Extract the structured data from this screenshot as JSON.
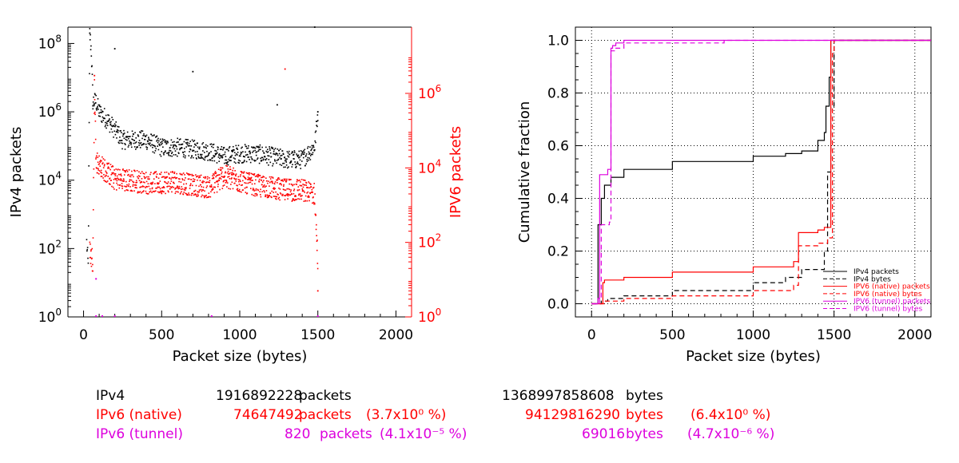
{
  "colors": {
    "ipv4": "#000000",
    "ipv6_native": "#ff0000",
    "ipv6_tunnel": "#dd00dd",
    "grid": "#000000"
  },
  "chart_data": [
    {
      "type": "scatter",
      "xlabel": "Packet size (bytes)",
      "ylabel_left": "IPv4 packets",
      "ylabel_right": "IPV6 packets",
      "xlim": [
        -100,
        2100
      ],
      "ylim_left": [
        1,
        300000000
      ],
      "ylim_right": [
        1,
        60000000
      ],
      "yscale": "log",
      "grid": false,
      "x_ticks": [
        "0",
        "500",
        "1000",
        "1500",
        "2000"
      ],
      "y_ticks_left": [
        {
          "base": "10",
          "exp": "0"
        },
        {
          "base": "10",
          "exp": "2"
        },
        {
          "base": "10",
          "exp": "4"
        },
        {
          "base": "10",
          "exp": "6"
        },
        {
          "base": "10",
          "exp": "8"
        }
      ],
      "y_ticks_right": [
        {
          "base": "10",
          "exp": "0"
        },
        {
          "base": "10",
          "exp": "2"
        },
        {
          "base": "10",
          "exp": "4"
        },
        {
          "base": "10",
          "exp": "6"
        }
      ],
      "series": [
        {
          "key": "ipv4",
          "profile": [
            [
              20,
              150
            ],
            [
              30,
              30
            ],
            [
              40,
              200000000
            ],
            [
              50,
              60000000
            ],
            [
              60,
              2000000
            ],
            [
              80,
              2000000
            ],
            [
              100,
              1000000
            ],
            [
              150,
              600000
            ],
            [
              200,
              300000
            ],
            [
              250,
              150000
            ],
            [
              300,
              150000
            ],
            [
              400,
              150000
            ],
            [
              500,
              90000
            ],
            [
              600,
              90000
            ],
            [
              700,
              80000
            ],
            [
              800,
              70000
            ],
            [
              900,
              50000
            ],
            [
              1000,
              60000
            ],
            [
              1100,
              60000
            ],
            [
              1200,
              50000
            ],
            [
              1300,
              40000
            ],
            [
              1400,
              40000
            ],
            [
              1480,
              100000
            ],
            [
              1490,
              300000
            ],
            [
              1500,
              1000000
            ]
          ],
          "outliers": [
            [
              40,
              200000000
            ],
            [
              60,
              1500000
            ],
            [
              200,
              70000000
            ],
            [
              700,
              15000000
            ],
            [
              1240,
              1600000
            ],
            [
              1480,
              300000000
            ],
            [
              1500,
              1000000
            ]
          ]
        },
        {
          "key": "ipv6_native",
          "profile": [
            [
              40,
              60
            ],
            [
              60,
              30
            ],
            [
              70,
              3000000
            ],
            [
              80,
              15000
            ],
            [
              100,
              12000
            ],
            [
              200,
              5000
            ],
            [
              400,
              4000
            ],
            [
              600,
              4000
            ],
            [
              800,
              3000
            ],
            [
              900,
              6000
            ],
            [
              1000,
              4500
            ],
            [
              1100,
              3500
            ],
            [
              1200,
              3000
            ],
            [
              1300,
              2500
            ],
            [
              1400,
              2500
            ],
            [
              1480,
              2000
            ],
            [
              1500,
              30
            ]
          ],
          "outliers": [
            [
              70,
              3000000
            ],
            [
              1290,
              4500000
            ],
            [
              1500,
              5
            ]
          ]
        },
        {
          "key": "ipv6_tunnel",
          "points": [
            [
              80,
              1
            ],
            [
              80,
              10
            ],
            [
              120,
              1
            ],
            [
              200,
              1
            ],
            [
              820,
              1
            ],
            [
              1500,
              1
            ]
          ]
        }
      ]
    },
    {
      "type": "line",
      "xlabel": "Packet size (bytes)",
      "ylabel": "Cumulative fraction",
      "xlim": [
        -100,
        2100
      ],
      "ylim": [
        -0.05,
        1.05
      ],
      "grid": true,
      "legend_position": "lower-right",
      "x_ticks": [
        "0",
        "500",
        "1000",
        "1500",
        "2000"
      ],
      "y_ticks": [
        "0.0",
        "0.2",
        "0.4",
        "0.6",
        "0.8",
        "1.0"
      ],
      "series": [
        {
          "name": "IPv4 packets",
          "color_key": "ipv4",
          "dash": false,
          "x": [
            0,
            40,
            60,
            80,
            120,
            200,
            500,
            1000,
            1200,
            1300,
            1400,
            1440,
            1450,
            1470,
            1480,
            1500,
            2100
          ],
          "y": [
            0,
            0.3,
            0.4,
            0.45,
            0.48,
            0.51,
            0.54,
            0.56,
            0.57,
            0.58,
            0.62,
            0.65,
            0.75,
            0.86,
            1.0,
            1.0,
            1.0
          ]
        },
        {
          "name": "IPv4 bytes",
          "color_key": "ipv4",
          "dash": true,
          "x": [
            0,
            60,
            100,
            200,
            500,
            1000,
            1200,
            1300,
            1440,
            1460,
            1480,
            1500,
            2100
          ],
          "y": [
            0,
            0.01,
            0.02,
            0.03,
            0.05,
            0.08,
            0.1,
            0.13,
            0.2,
            0.5,
            0.75,
            1.0,
            1.0
          ]
        },
        {
          "name": "IPV6 (native) packets",
          "color_key": "ipv6_native",
          "dash": false,
          "x": [
            0,
            70,
            80,
            200,
            500,
            1000,
            1250,
            1280,
            1400,
            1440,
            1480,
            1500,
            2100
          ],
          "y": [
            0,
            0.08,
            0.09,
            0.1,
            0.12,
            0.14,
            0.16,
            0.27,
            0.28,
            0.29,
            1.0,
            1.0,
            1.0
          ]
        },
        {
          "name": "IPV6 (native) bytes",
          "color_key": "ipv6_native",
          "dash": true,
          "x": [
            0,
            80,
            200,
            500,
            1000,
            1250,
            1280,
            1400,
            1460,
            1490,
            1500,
            2100
          ],
          "y": [
            0,
            0.01,
            0.02,
            0.03,
            0.05,
            0.07,
            0.22,
            0.23,
            0.25,
            0.95,
            1.0,
            1.0
          ]
        },
        {
          "name": "IPV6 (tunnel) packets",
          "color_key": "ipv6_tunnel",
          "dash": false,
          "x": [
            0,
            40,
            50,
            100,
            120,
            130,
            150,
            200,
            800,
            2100
          ],
          "y": [
            0,
            0.02,
            0.49,
            0.51,
            0.97,
            0.98,
            0.99,
            1.0,
            1.0,
            1.0
          ]
        },
        {
          "name": "IPV6 (tunnel) bytes",
          "color_key": "ipv6_tunnel",
          "dash": true,
          "x": [
            0,
            50,
            60,
            110,
            120,
            150,
            200,
            820,
            2100
          ],
          "y": [
            0,
            0.02,
            0.3,
            0.31,
            0.96,
            0.97,
            0.99,
            1.0,
            1.0
          ]
        }
      ]
    }
  ],
  "summary": [
    {
      "key": "ipv4",
      "label": "IPv4",
      "packets": "1916892228",
      "packets_unit": "packets",
      "packets_pct": "",
      "bytes": "1368997858608",
      "bytes_unit": "bytes",
      "bytes_pct": ""
    },
    {
      "key": "ipv6_native",
      "label": "IPv6 (native)",
      "packets": "74647492",
      "packets_unit": "packets",
      "packets_pct": "(3.7x10⁰ %)",
      "bytes": "94129816290",
      "bytes_unit": "bytes",
      "bytes_pct": "(6.4x10⁰ %)"
    },
    {
      "key": "ipv6_tunnel",
      "label": "IPv6 (tunnel)",
      "packets": "820",
      "packets_unit": "packets",
      "packets_pct": "(4.1x10⁻⁵ %)",
      "bytes": "69016",
      "bytes_unit": "bytes",
      "bytes_pct": "(4.7x10⁻⁶ %)"
    }
  ]
}
